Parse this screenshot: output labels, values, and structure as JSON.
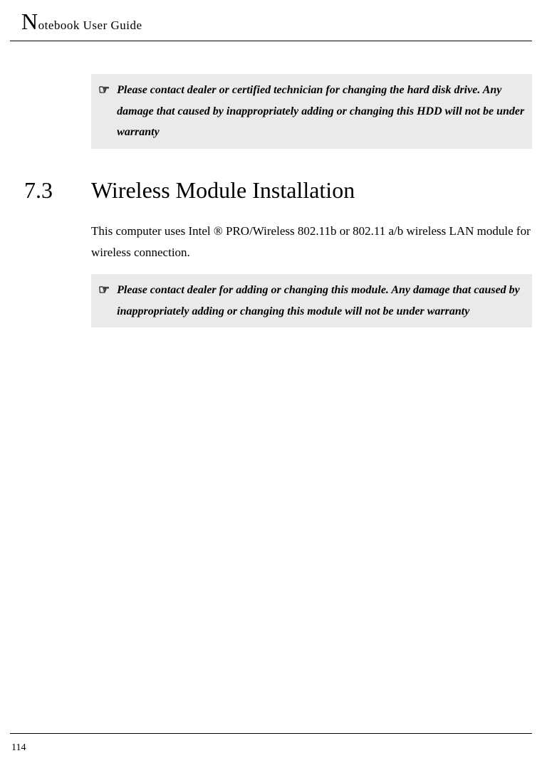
{
  "header": {
    "drop_cap": "N",
    "title_rest": "otebook User Guide"
  },
  "note1": {
    "icon": "☞",
    "text": "Please contact dealer or certified technician for changing the hard disk drive. Any damage that caused by inappropriately adding or changing this HDD will not be under warranty"
  },
  "section": {
    "number": "7.3",
    "title": "Wireless Module Installation"
  },
  "body": {
    "paragraph1": "This computer uses Intel ® PRO/Wireless 802.11b or 802.11 a/b wireless LAN module for wireless connection."
  },
  "note2": {
    "icon": "☞",
    "text": " Please contact dealer for adding or changing this module. Any damage that caused by inappropriately adding or changing this module will not be under warranty"
  },
  "footer": {
    "page_number": "114"
  },
  "colors": {
    "background": "#ffffff",
    "text": "#000000",
    "note_bg": "#eaeaea",
    "rule": "#000000"
  }
}
